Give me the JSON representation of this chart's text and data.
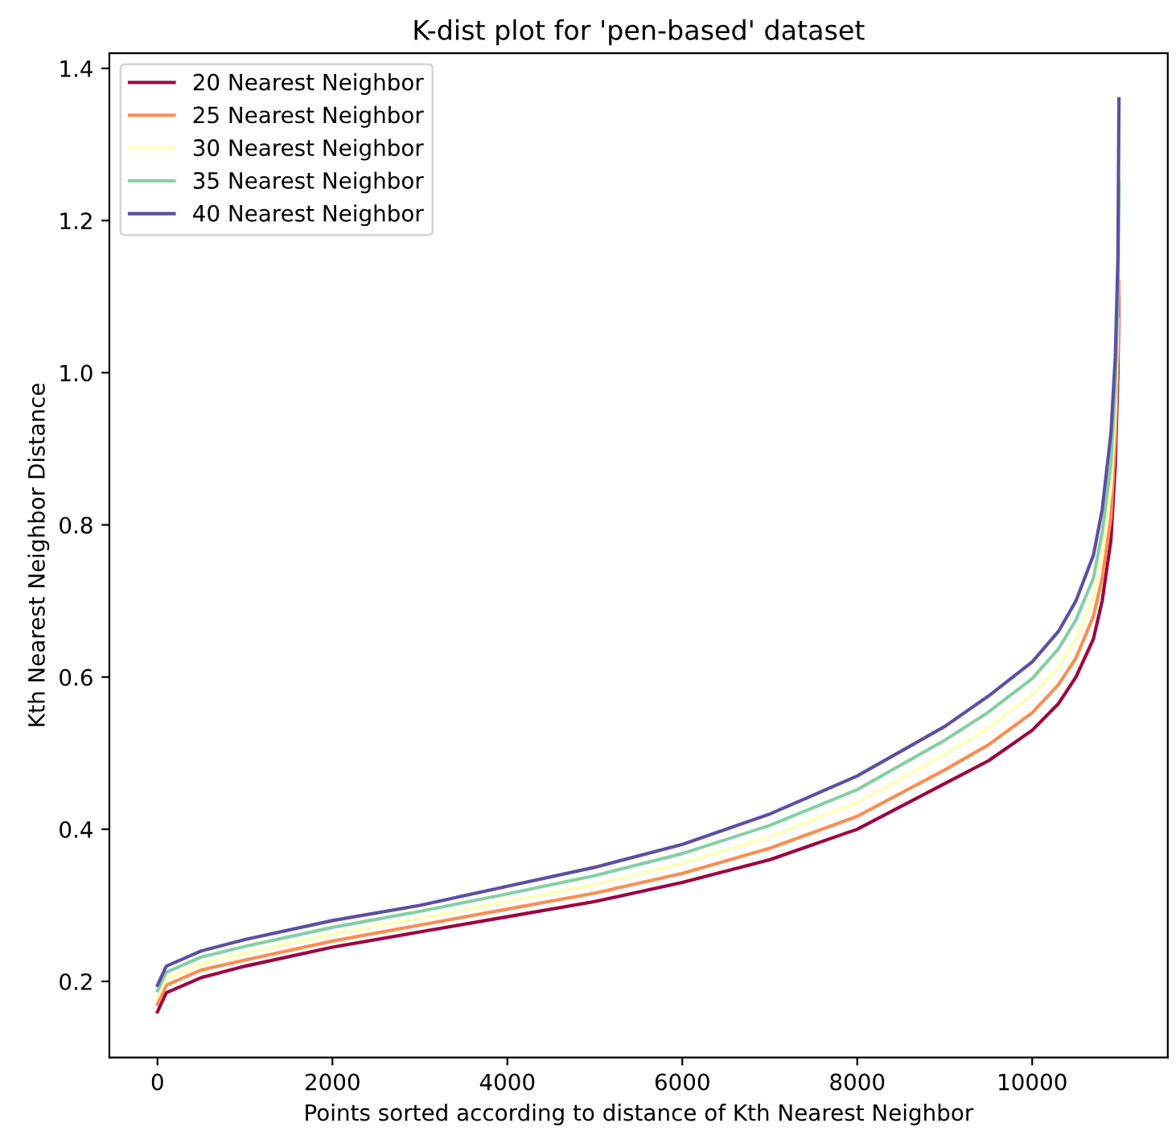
{
  "chart_data": {
    "type": "line",
    "title": "K-dist plot for 'pen-based' dataset",
    "xlabel": "Points sorted according to distance of Kth Nearest Neighbor",
    "ylabel": "Kth Nearest Neighbor Distance",
    "x": [
      0,
      100,
      500,
      1000,
      2000,
      3000,
      4000,
      5000,
      6000,
      7000,
      8000,
      9000,
      9500,
      10000,
      10300,
      10500,
      10700,
      10800,
      10900,
      10950,
      10980,
      10992
    ],
    "series": [
      {
        "name": "20 Nearest Neighbor",
        "color": "#9e0142",
        "values": [
          0.16,
          0.185,
          0.205,
          0.22,
          0.245,
          0.265,
          0.285,
          0.305,
          0.33,
          0.36,
          0.4,
          0.46,
          0.49,
          0.53,
          0.565,
          0.6,
          0.65,
          0.7,
          0.78,
          0.88,
          1.0,
          1.1
        ]
      },
      {
        "name": "25 Nearest Neighbor",
        "color": "#f98e52",
        "values": [
          0.17,
          0.195,
          0.215,
          0.228,
          0.253,
          0.274,
          0.295,
          0.316,
          0.342,
          0.375,
          0.417,
          0.478,
          0.511,
          0.553,
          0.59,
          0.625,
          0.68,
          0.73,
          0.81,
          0.91,
          1.03,
          1.12
        ]
      },
      {
        "name": "30 Nearest Neighbor",
        "color": "#ffffbe",
        "values": [
          0.18,
          0.203,
          0.223,
          0.237,
          0.262,
          0.283,
          0.305,
          0.327,
          0.355,
          0.39,
          0.435,
          0.498,
          0.533,
          0.577,
          0.613,
          0.65,
          0.705,
          0.76,
          0.85,
          0.95,
          1.07,
          null
        ]
      },
      {
        "name": "35 Nearest Neighbor",
        "color": "#86cfa5",
        "values": [
          0.188,
          0.212,
          0.232,
          0.246,
          0.271,
          0.292,
          0.315,
          0.339,
          0.368,
          0.405,
          0.452,
          0.517,
          0.554,
          0.598,
          0.637,
          0.675,
          0.73,
          0.79,
          0.88,
          0.98,
          1.1,
          1.25
        ]
      },
      {
        "name": "40 Nearest Neighbor",
        "color": "#5e4fa2",
        "values": [
          0.195,
          0.22,
          0.24,
          0.255,
          0.28,
          0.3,
          0.325,
          0.35,
          0.38,
          0.42,
          0.47,
          0.535,
          0.575,
          0.62,
          0.66,
          0.7,
          0.76,
          0.82,
          0.92,
          1.02,
          1.15,
          1.36
        ]
      }
    ],
    "xlim": [
      -550,
      11550
    ],
    "ylim": [
      0.1,
      1.42
    ],
    "xticks": [
      0,
      2000,
      4000,
      6000,
      8000,
      10000
    ],
    "yticks": [
      {
        "value": 0.2,
        "label": "0.2"
      },
      {
        "value": 0.4,
        "label": "0.4"
      },
      {
        "value": 0.6,
        "label": "0.6"
      },
      {
        "value": 0.8,
        "label": "0.8"
      },
      {
        "value": 1.0,
        "label": "1.0"
      },
      {
        "value": 1.2,
        "label": "1.2"
      },
      {
        "value": 1.4,
        "label": "1.4"
      }
    ],
    "legend": "top left",
    "grid": false,
    "marker": "none",
    "line_style": "solid"
  }
}
